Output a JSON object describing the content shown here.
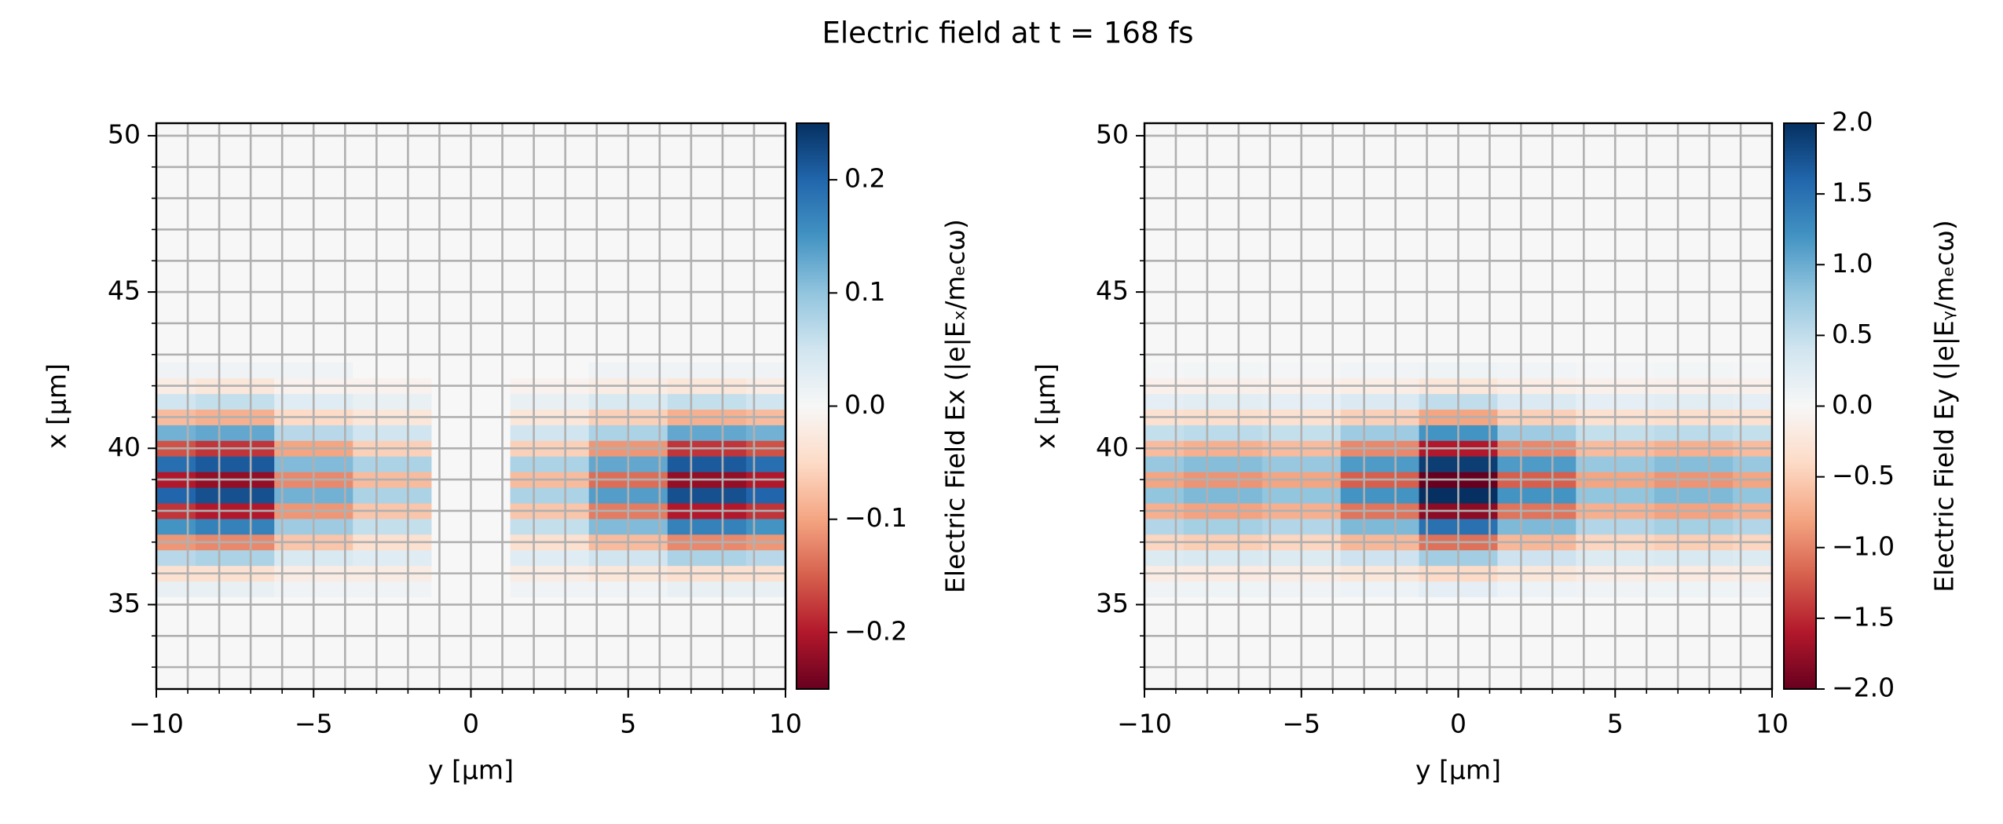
{
  "title": "Electric field at t = 168 fs",
  "chart_data": [
    {
      "type": "heatmap",
      "xlabel": "y [µm]",
      "ylabel": "x [µm]",
      "colorbar_label": "Electric Field Ex (|e|Eₓ/mₑcω)",
      "colormap": "RdBu",
      "grid": true,
      "xlim": [
        -10,
        10
      ],
      "ylim": [
        32.3,
        50.4
      ],
      "clim": [
        -0.25,
        0.25
      ],
      "xticks": [
        {
          "value": -10,
          "label": "−10"
        },
        {
          "value": -5,
          "label": "−5"
        },
        0,
        5,
        10
      ],
      "yticks": [
        35,
        40,
        45,
        50
      ],
      "cticks": [
        {
          "value": -0.2,
          "label": "−0.2"
        },
        {
          "value": -0.1,
          "label": "−0.1"
        },
        {
          "value": 0,
          "label": "0.0"
        },
        0.1,
        0.2
      ],
      "xminor": [
        -10,
        -9,
        -8,
        -7,
        -6,
        -5,
        -4,
        -3,
        -2,
        -1,
        0,
        1,
        2,
        3,
        4,
        5,
        6,
        7,
        8,
        9,
        10
      ],
      "yminor": [
        33,
        34,
        35,
        36,
        37,
        38,
        39,
        40,
        41,
        42,
        43,
        44,
        45,
        46,
        47,
        48,
        49,
        50
      ],
      "x": [
        -10,
        -7.5,
        -5,
        -2.5,
        0,
        2.5,
        5,
        7.5,
        10
      ],
      "y": [
        35.5,
        36,
        36.5,
        37,
        37.5,
        38,
        38.5,
        39,
        39.5,
        40,
        40.5,
        41,
        41.5,
        42,
        42.5
      ],
      "values": [
        [
          0.02,
          0.02,
          0.01,
          0.01,
          0,
          0.01,
          0.01,
          0.02,
          0.02
        ],
        [
          -0.04,
          -0.04,
          -0.02,
          -0.02,
          0,
          -0.02,
          -0.03,
          -0.04,
          -0.04
        ],
        [
          0.07,
          0.08,
          0.04,
          0.03,
          0,
          0.03,
          0.05,
          0.08,
          0.07
        ],
        [
          -0.11,
          -0.12,
          -0.07,
          -0.04,
          0,
          -0.04,
          -0.08,
          -0.12,
          -0.11
        ],
        [
          0.15,
          0.17,
          0.09,
          0.06,
          0,
          0.06,
          0.11,
          0.17,
          0.15
        ],
        [
          -0.18,
          -0.2,
          -0.11,
          -0.07,
          0,
          -0.07,
          -0.13,
          -0.2,
          -0.18
        ],
        [
          0.2,
          0.22,
          0.12,
          0.08,
          0,
          0.08,
          0.14,
          0.22,
          0.2
        ],
        [
          -0.2,
          -0.22,
          -0.12,
          -0.08,
          0,
          -0.08,
          -0.14,
          -0.22,
          -0.2
        ],
        [
          0.19,
          0.21,
          0.11,
          0.08,
          0,
          0.08,
          0.13,
          0.21,
          0.19
        ],
        [
          -0.16,
          -0.18,
          -0.1,
          -0.06,
          0,
          -0.06,
          -0.11,
          -0.18,
          -0.16
        ],
        [
          0.12,
          0.13,
          0.07,
          0.05,
          0,
          0.05,
          0.08,
          0.13,
          0.12
        ],
        [
          -0.08,
          -0.09,
          -0.05,
          -0.03,
          0,
          -0.03,
          -0.06,
          -0.09,
          -0.08
        ],
        [
          0.05,
          0.06,
          0.03,
          0.02,
          0,
          0.02,
          0.04,
          0.06,
          0.05
        ],
        [
          -0.02,
          -0.03,
          -0.01,
          -0.01,
          0,
          -0.01,
          -0.02,
          -0.03,
          -0.02
        ],
        [
          0.01,
          0.01,
          0.01,
          0,
          0,
          0,
          0.01,
          0.01,
          0.01
        ]
      ]
    },
    {
      "type": "heatmap",
      "xlabel": "y [µm]",
      "ylabel": "x [µm]",
      "colorbar_label": "Electric Field Ey (|e|Eᵧ/mₑcω)",
      "colormap": "RdBu",
      "grid": true,
      "xlim": [
        -10,
        10
      ],
      "ylim": [
        32.3,
        50.4
      ],
      "clim": [
        -2,
        2
      ],
      "xticks": [
        {
          "value": -10,
          "label": "−10"
        },
        {
          "value": -5,
          "label": "−5"
        },
        0,
        5,
        10
      ],
      "yticks": [
        35,
        40,
        45,
        50
      ],
      "cticks": [
        {
          "value": -2,
          "label": "−2.0"
        },
        {
          "value": -1.5,
          "label": "−1.5"
        },
        {
          "value": -1,
          "label": "−1.0"
        },
        {
          "value": -0.5,
          "label": "−0.5"
        },
        {
          "value": 0,
          "label": "0.0"
        },
        0.5,
        {
          "value": 1,
          "label": "1.0"
        },
        1.5,
        {
          "value": 2,
          "label": "2.0"
        }
      ],
      "xminor": [
        -10,
        -9,
        -8,
        -7,
        -6,
        -5,
        -4,
        -3,
        -2,
        -1,
        0,
        1,
        2,
        3,
        4,
        5,
        6,
        7,
        8,
        9,
        10
      ],
      "yminor": [
        33,
        34,
        35,
        36,
        37,
        38,
        39,
        40,
        41,
        42,
        43,
        44,
        45,
        46,
        47,
        48,
        49,
        50
      ],
      "x": [
        -10,
        -7.5,
        -5,
        -2.5,
        0,
        2.5,
        5,
        7.5,
        10
      ],
      "y": [
        35.5,
        36,
        36.5,
        37,
        37.5,
        38,
        38.5,
        39,
        39.5,
        40,
        40.5,
        41,
        41.5,
        42,
        42.5
      ],
      "values": [
        [
          0.08,
          0.09,
          0.08,
          0.12,
          0.2,
          0.12,
          0.08,
          0.09,
          0.08
        ],
        [
          -0.16,
          -0.18,
          -0.16,
          -0.24,
          -0.4,
          -0.24,
          -0.16,
          -0.18,
          -0.16
        ],
        [
          0.28,
          0.32,
          0.28,
          0.42,
          0.7,
          0.42,
          0.28,
          0.32,
          0.28
        ],
        [
          -0.44,
          -0.5,
          -0.44,
          -0.66,
          -1.1,
          -0.66,
          -0.44,
          -0.5,
          -0.44
        ],
        [
          0.6,
          0.68,
          0.6,
          0.9,
          1.5,
          0.9,
          0.6,
          0.68,
          0.6
        ],
        [
          -0.72,
          -0.81,
          -0.72,
          -1.08,
          -1.8,
          -1.08,
          -0.72,
          -0.81,
          -0.72
        ],
        [
          0.8,
          0.9,
          0.8,
          1.2,
          2,
          1.2,
          0.8,
          0.9,
          0.8
        ],
        [
          -0.8,
          -0.9,
          -0.8,
          -1.2,
          -2,
          -1.2,
          -0.8,
          -0.9,
          -0.8
        ],
        [
          0.76,
          0.86,
          0.76,
          1.14,
          1.9,
          1.14,
          0.76,
          0.86,
          0.76
        ],
        [
          -0.64,
          -0.72,
          -0.64,
          -0.96,
          -1.6,
          -0.96,
          -0.64,
          -0.72,
          -0.64
        ],
        [
          0.48,
          0.54,
          0.48,
          0.72,
          1.2,
          0.72,
          0.48,
          0.54,
          0.48
        ],
        [
          -0.32,
          -0.36,
          -0.32,
          -0.48,
          -0.8,
          -0.48,
          -0.32,
          -0.36,
          -0.32
        ],
        [
          0.2,
          0.23,
          0.2,
          0.3,
          0.5,
          0.3,
          0.2,
          0.23,
          0.2
        ],
        [
          -0.1,
          -0.11,
          -0.1,
          -0.14,
          -0.24,
          -0.14,
          -0.1,
          -0.11,
          -0.1
        ],
        [
          0.04,
          0.05,
          0.04,
          0.06,
          0.1,
          0.06,
          0.04,
          0.05,
          0.04
        ]
      ]
    }
  ]
}
